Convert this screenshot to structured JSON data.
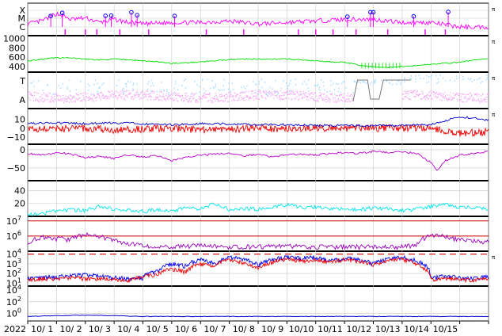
{
  "year": "2022",
  "chart_data": [
    {
      "id": "flare",
      "type": "line",
      "ytick_labels": [
        "X",
        "M",
        "C"
      ],
      "colors": {
        "series": "#ff00ff",
        "markers": "#0000ff"
      },
      "markers": "circles on major flare peaks",
      "pi": "π",
      "approx_series": [
        {
          "day": 0.0,
          "level": 0.2
        },
        {
          "day": 0.5,
          "level": 0.4
        },
        {
          "day": 1.0,
          "level": 0.9
        },
        {
          "day": 1.5,
          "level": 0.5
        },
        {
          "day": 2.0,
          "level": 0.6
        },
        {
          "day": 2.5,
          "level": 0.3
        },
        {
          "day": 3.0,
          "level": 0.5
        },
        {
          "day": 3.5,
          "level": 0.3
        },
        {
          "day": 4.0,
          "level": 0.2
        },
        {
          "day": 5.0,
          "level": 0.3
        },
        {
          "day": 6.0,
          "level": 0.3
        },
        {
          "day": 7.0,
          "level": 0.4
        },
        {
          "day": 8.0,
          "level": 0.2
        },
        {
          "day": 9.0,
          "level": 0.3
        },
        {
          "day": 10.0,
          "level": 0.4
        },
        {
          "day": 11.0,
          "level": 0.5
        },
        {
          "day": 12.0,
          "level": 0.5
        },
        {
          "day": 13.0,
          "level": 0.3
        },
        {
          "day": 14.0,
          "level": 0.3
        },
        {
          "day": 15.0,
          "level": 0.0
        },
        {
          "day": 16.0,
          "level": 0.0
        }
      ]
    },
    {
      "id": "speed",
      "type": "line",
      "ytick_labels": [
        "1000",
        "800",
        "600",
        "400"
      ],
      "ylim": [
        280,
        1060
      ],
      "colors": {
        "series": "#00dd00"
      },
      "pi": "π",
      "x": [
        0.0,
        0.5,
        1.0,
        1.5,
        2.0,
        2.5,
        3.0,
        3.5,
        4.0,
        4.5,
        5.0,
        5.5,
        6.0,
        6.5,
        7.0,
        7.5,
        8.0,
        8.5,
        9.0,
        9.5,
        10.0,
        10.5,
        11.0,
        11.5,
        12.0,
        12.5,
        13.0,
        13.5,
        14.0,
        14.5,
        15.0,
        15.5,
        16.0
      ],
      "values": [
        520,
        555,
        590,
        580,
        560,
        540,
        560,
        545,
        520,
        500,
        470,
        480,
        500,
        520,
        550,
        560,
        560,
        560,
        560,
        540,
        520,
        500,
        490,
        430,
        390,
        380,
        400,
        420,
        450,
        470,
        490,
        540,
        560
      ]
    },
    {
      "id": "particles",
      "type": "scatter",
      "ytick_labels": [
        "T",
        "A"
      ],
      "colors": {
        "T": "#aaddff",
        "A": "#f4a8f4",
        "trace": "#777777"
      },
      "pi": "π"
    },
    {
      "id": "imf",
      "type": "line",
      "ytick_labels": [
        "10",
        "0",
        "−10"
      ],
      "ylim": [
        -18,
        22
      ],
      "colors": {
        "total": "#0000cc",
        "component": "#ee0000"
      },
      "pi": "π",
      "series": [
        {
          "x": [
            0,
            1,
            2,
            3,
            4,
            5,
            6,
            7,
            8,
            9,
            10,
            11,
            12,
            13,
            14,
            15,
            16
          ],
          "values": [
            5,
            6,
            5,
            6,
            5,
            4,
            5,
            5,
            4,
            4,
            3,
            3,
            3,
            3,
            4,
            13,
            9
          ]
        },
        {
          "x": [
            0,
            1,
            2,
            3,
            4,
            5,
            6,
            7,
            8,
            9,
            10,
            11,
            12,
            13,
            14,
            15,
            16
          ],
          "values": [
            0,
            -1,
            0,
            -2,
            -1,
            0,
            -2,
            -1,
            0,
            -1,
            0,
            0,
            0,
            0,
            0,
            -6,
            -4
          ]
        }
      ]
    },
    {
      "id": "dst",
      "type": "line",
      "ytick_labels": [
        "0",
        "−50"
      ],
      "ylim": [
        -85,
        15
      ],
      "colors": {
        "series": "#bb00cc"
      },
      "x": [
        0,
        0.5,
        1,
        1.5,
        2,
        2.5,
        3,
        3.5,
        4,
        4.5,
        5,
        5.5,
        6,
        6.5,
        7,
        7.5,
        8,
        8.5,
        9,
        9.5,
        10,
        10.5,
        11,
        11.5,
        12,
        12.5,
        13,
        13.5,
        14,
        14.2,
        14.5,
        15,
        15.5,
        16
      ],
      "values": [
        -10,
        -15,
        -8,
        -12,
        -22,
        -18,
        -24,
        -14,
        -20,
        -16,
        -30,
        -20,
        -15,
        -12,
        -10,
        -18,
        -12,
        -20,
        -14,
        -12,
        -15,
        -10,
        -8,
        -10,
        -5,
        -8,
        -6,
        -10,
        -35,
        -58,
        -30,
        -15,
        -10,
        -5
      ]
    },
    {
      "id": "ae",
      "type": "line",
      "ytick_labels": [
        "40",
        "20"
      ],
      "ylim": [
        0,
        55
      ],
      "colors": {
        "series": "#00e5ee"
      },
      "x": [
        0,
        0.5,
        1,
        1.5,
        2,
        2.5,
        3,
        3.5,
        4,
        4.5,
        5,
        5.5,
        6,
        6.5,
        7,
        7.5,
        8,
        8.5,
        9,
        9.5,
        10,
        10.5,
        11,
        11.5,
        12,
        12.5,
        13,
        13.5,
        14,
        14.5,
        15,
        15.5,
        16
      ],
      "values": [
        2,
        4,
        8,
        10,
        9,
        15,
        11,
        9,
        8,
        10,
        8,
        13,
        12,
        20,
        10,
        12,
        11,
        14,
        18,
        13,
        14,
        12,
        11,
        10,
        13,
        12,
        9,
        11,
        15,
        18,
        14,
        13,
        12
      ]
    },
    {
      "id": "electron",
      "type": "line",
      "ytick_labels": [
        "10^7",
        "10^6"
      ],
      "ylog": true,
      "ylim": [
        100000,
        20000000
      ],
      "colors": {
        "series": "#9900bb",
        "threshold": "#cc0000"
      },
      "thresholds": [
        10000000,
        1000000
      ],
      "x": [
        0,
        0.5,
        1,
        1.5,
        2,
        2.5,
        3,
        3.5,
        4,
        4.5,
        5,
        5.5,
        6,
        6.5,
        7,
        7.5,
        8,
        8.5,
        9,
        9.5,
        10,
        10.5,
        11,
        11.5,
        12,
        12.5,
        13,
        13.5,
        14,
        14.5,
        15,
        15.5,
        16
      ],
      "values": [
        400000,
        900000,
        700000,
        600000,
        1300000,
        1000000,
        500000,
        300000,
        250000,
        220000,
        200000,
        220000,
        230000,
        220000,
        200000,
        200000,
        210000,
        230000,
        220000,
        210000,
        200000,
        200000,
        200000,
        200000,
        200000,
        200000,
        200000,
        250000,
        1200000,
        900000,
        600000,
        500000,
        400000
      ]
    },
    {
      "id": "proton",
      "type": "line",
      "ytick_labels": [
        "10^4",
        "10^3",
        "10^2",
        "10^1"
      ],
      "ylog": true,
      "ylim": [
        5,
        20000
      ],
      "colors": {
        "blue": "#0000ee",
        "red": "#ee0000",
        "threshold": "#cc0000"
      },
      "threshold": 10000,
      "pi": "π",
      "series": [
        {
          "x": [
            0,
            0.5,
            1,
            1.5,
            2,
            2.5,
            3,
            3.5,
            4,
            4.5,
            5,
            5.5,
            6,
            6.5,
            7,
            7.5,
            8,
            8.5,
            9,
            9.5,
            10,
            10.5,
            11,
            11.5,
            12,
            12.5,
            13,
            13.5,
            14,
            14.5,
            15,
            15.5,
            16
          ],
          "values": [
            30,
            40,
            50,
            60,
            80,
            60,
            40,
            30,
            40,
            200,
            1000,
            600,
            3000,
            800,
            5000,
            3000,
            800,
            3000,
            5000,
            4000,
            5000,
            2000,
            4000,
            3000,
            1000,
            3000,
            5000,
            2000,
            30,
            60,
            40,
            30,
            50
          ]
        },
        {
          "x": [
            0,
            0.5,
            1,
            1.5,
            2,
            2.5,
            3,
            3.5,
            4,
            4.5,
            5,
            5.5,
            6,
            6.5,
            7,
            7.5,
            8,
            8.5,
            9,
            9.5,
            10,
            10.5,
            11,
            11.5,
            12,
            12.5,
            13,
            13.5,
            14,
            14.5,
            15,
            15.5,
            16
          ],
          "values": [
            20,
            30,
            25,
            40,
            30,
            30,
            25,
            20,
            50,
            80,
            300,
            150,
            1000,
            400,
            3000,
            1200,
            300,
            1500,
            3000,
            2000,
            2500,
            1500,
            3000,
            2000,
            700,
            2000,
            3000,
            800,
            20,
            30,
            25,
            20,
            30
          ]
        }
      ]
    },
    {
      "id": "low",
      "type": "line",
      "ytick_labels": [
        "10^4",
        "10^2",
        "10^0"
      ],
      "ylog": true,
      "ylim": [
        0.05,
        50000
      ],
      "colors": {
        "series": "#0000cc"
      },
      "x": [
        0,
        2,
        4,
        6,
        8,
        10,
        12,
        14,
        16
      ],
      "values": [
        0.3,
        0.5,
        0.3,
        0.3,
        0.3,
        0.3,
        0.3,
        0.3,
        0.3
      ]
    }
  ],
  "xaxis": {
    "day_ticks": [
      "10/ 1",
      "10/ 2",
      "10/ 3",
      "10/ 4",
      "10/ 5",
      "10/ 6",
      "10/ 7",
      "10/ 8",
      "10/ 9",
      "10/10",
      "10/11",
      "10/12",
      "10/13",
      "10/14",
      "10/15"
    ],
    "xlim": [
      "2022-10-01",
      "2022-10-16"
    ],
    "grid": true
  }
}
